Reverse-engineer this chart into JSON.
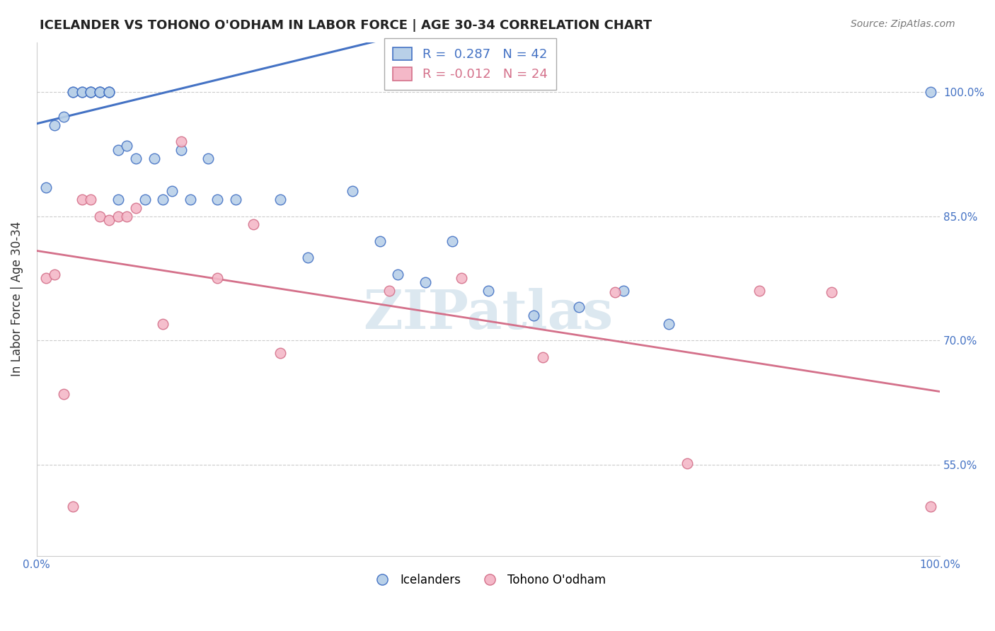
{
  "title": "ICELANDER VS TOHONO O'ODHAM IN LABOR FORCE | AGE 30-34 CORRELATION CHART",
  "source": "Source: ZipAtlas.com",
  "ylabel": "In Labor Force | Age 30-34",
  "x_range": [
    0.0,
    1.0
  ],
  "y_range": [
    0.44,
    1.06
  ],
  "blue_R": 0.287,
  "blue_N": 42,
  "pink_R": -0.012,
  "pink_N": 24,
  "blue_label": "Icelanders",
  "pink_label": "Tohono O'odham",
  "blue_color": "#b8d0e8",
  "blue_line_color": "#4472c4",
  "pink_color": "#f4b8c8",
  "pink_line_color": "#d4708a",
  "blue_x": [
    0.01,
    0.02,
    0.03,
    0.04,
    0.04,
    0.05,
    0.05,
    0.06,
    0.06,
    0.06,
    0.07,
    0.07,
    0.07,
    0.08,
    0.08,
    0.08,
    0.09,
    0.09,
    0.1,
    0.11,
    0.12,
    0.13,
    0.14,
    0.15,
    0.16,
    0.17,
    0.19,
    0.2,
    0.22,
    0.27,
    0.3,
    0.35,
    0.38,
    0.4,
    0.43,
    0.46,
    0.5,
    0.55,
    0.6,
    0.65,
    0.7,
    0.99
  ],
  "blue_y": [
    0.885,
    0.96,
    0.97,
    1.0,
    1.0,
    1.0,
    1.0,
    1.0,
    1.0,
    1.0,
    1.0,
    1.0,
    1.0,
    1.0,
    1.0,
    1.0,
    0.93,
    0.87,
    0.935,
    0.92,
    0.87,
    0.92,
    0.87,
    0.88,
    0.93,
    0.87,
    0.92,
    0.87,
    0.87,
    0.87,
    0.8,
    0.88,
    0.82,
    0.78,
    0.77,
    0.82,
    0.76,
    0.73,
    0.74,
    0.76,
    0.72,
    1.0
  ],
  "pink_x": [
    0.01,
    0.02,
    0.03,
    0.04,
    0.05,
    0.06,
    0.07,
    0.08,
    0.09,
    0.1,
    0.11,
    0.14,
    0.16,
    0.2,
    0.24,
    0.27,
    0.39,
    0.47,
    0.56,
    0.64,
    0.72,
    0.8,
    0.88,
    0.99
  ],
  "pink_y": [
    0.775,
    0.78,
    0.635,
    0.5,
    0.87,
    0.87,
    0.85,
    0.845,
    0.85,
    0.85,
    0.86,
    0.72,
    0.94,
    0.775,
    0.84,
    0.685,
    0.76,
    0.775,
    0.68,
    0.758,
    0.552,
    0.76,
    0.758,
    0.5
  ],
  "background_color": "#ffffff",
  "grid_color": "#cccccc",
  "watermark_color": "#dce8f0"
}
